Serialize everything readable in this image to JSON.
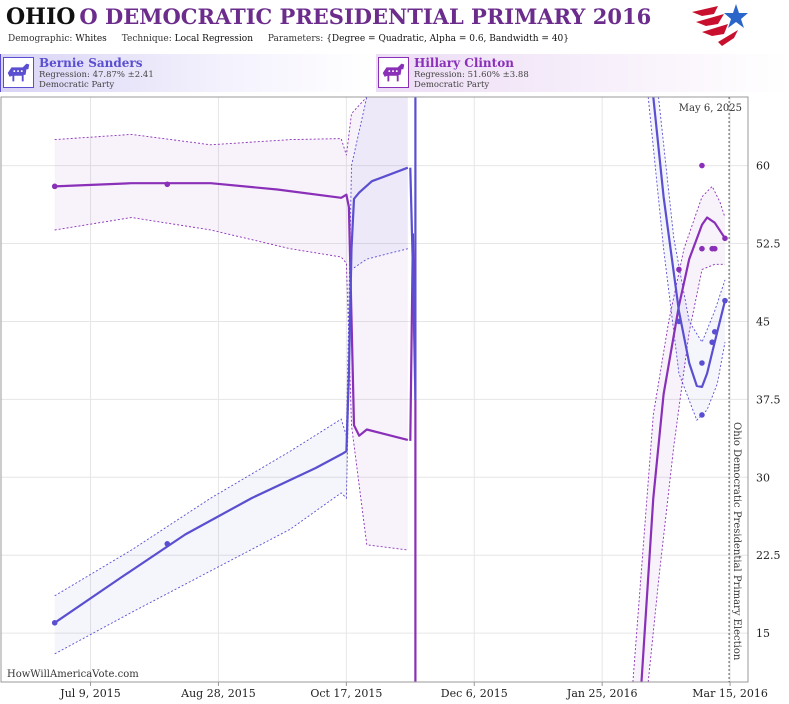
{
  "header": {
    "state": "OHIO",
    "title_rest": "O DEMOCRATIC PRESIDENTIAL PRIMARY 2016",
    "demographic_label": "Demographic:",
    "demographic_value": "Whites",
    "technique_label": "Technique:",
    "technique_value": "Local Regression",
    "parameters_label": "Parameters:",
    "parameters_value": "{Degree = Quadratic, Alpha = 0.6, Bandwidth = 40}"
  },
  "candidates": [
    {
      "name": "Bernie Sanders",
      "regression": "Regression: 47.87% ±2.41",
      "party": "Democratic Party",
      "color": "#5a4fd0"
    },
    {
      "name": "Hillary Clinton",
      "regression": "Regression: 51.60% ±3.88",
      "party": "Democratic Party",
      "color": "#8a2fb8"
    }
  ],
  "chart_data": {
    "type": "line",
    "x_tick_labels": [
      "Jul 9, 2015",
      "Aug 28, 2015",
      "Oct 17, 2015",
      "Dec 6, 2015",
      "Jan 25, 2016",
      "Mar 15, 2016"
    ],
    "x_tick_dates": [
      "2015-07-09",
      "2015-08-28",
      "2015-10-17",
      "2015-12-06",
      "2016-01-25",
      "2016-03-15"
    ],
    "xlim": [
      "2015-06-04",
      "2016-03-22"
    ],
    "y_ticks": [
      15,
      22.5,
      30,
      37.5,
      45,
      52.5,
      60
    ],
    "y_tick_labels": [
      "15",
      "22.5",
      "30",
      "37.5",
      "45",
      "52.5",
      "60"
    ],
    "ylim": [
      10.3,
      66.6
    ],
    "y_axis_side": "right",
    "grid": true,
    "current_date_label": "May 6, 2025",
    "event_label": "Ohio Democratic Presidential Primary Election",
    "event_date": "2016-03-15",
    "watermark": "HowWillAmericaVote.com",
    "series": [
      {
        "name": "Hillary Clinton",
        "color": "#8a2fb8",
        "points": [
          {
            "x": "2015-06-25",
            "y": 58.0
          },
          {
            "x": "2015-08-08",
            "y": 58.2
          },
          {
            "x": "2016-02-24",
            "y": 50.0
          },
          {
            "x": "2016-03-04",
            "y": 60.0
          },
          {
            "x": "2016-03-04",
            "y": 52.0
          },
          {
            "x": "2016-03-08",
            "y": 52.0
          },
          {
            "x": "2016-03-09",
            "y": 52.0
          },
          {
            "x": "2016-03-13",
            "y": 53.0
          }
        ],
        "segments": [
          [
            [
              "2015-06-25",
              58.0
            ],
            [
              "2015-07-25",
              58.3
            ],
            [
              "2015-08-25",
              58.3
            ],
            [
              "2015-09-20",
              57.7
            ],
            [
              "2015-10-15",
              56.9
            ],
            [
              "2015-10-17",
              57.2
            ],
            [
              "2015-10-18",
              56.0
            ],
            [
              "2015-10-20",
              35.0
            ],
            [
              "2015-10-22",
              34.0
            ],
            [
              "2015-10-25",
              34.6
            ],
            [
              "2015-11-10",
              33.6
            ]
          ],
          [
            [
              "2015-11-11",
              33.5
            ],
            [
              "2015-11-12",
              53.4
            ],
            [
              "2015-11-13",
              40.0
            ],
            [
              "2015-11-13",
              9.0
            ]
          ],
          [
            [
              "2016-02-09",
              9.0
            ],
            [
              "2016-02-14",
              28.0
            ],
            [
              "2016-02-18",
              38.0
            ],
            [
              "2016-02-24",
              46.5
            ],
            [
              "2016-02-28",
              51.0
            ],
            [
              "2016-03-04",
              54.3
            ],
            [
              "2016-03-06",
              55.0
            ],
            [
              "2016-03-09",
              54.5
            ],
            [
              "2016-03-13",
              53.0
            ]
          ]
        ],
        "band_upper": [
          [
            "2015-06-25",
            62.5
          ],
          [
            "2015-07-25",
            63.0
          ],
          [
            "2015-08-25",
            62.0
          ],
          [
            "2015-09-25",
            62.5
          ],
          [
            "2015-10-15",
            62.6
          ],
          [
            "2015-10-17",
            61.0
          ],
          [
            "2015-10-19",
            65.0
          ],
          [
            "2015-10-25",
            66.6
          ],
          [
            "2015-11-10",
            66.6
          ]
        ],
        "band_lower": [
          [
            "2015-06-25",
            53.8
          ],
          [
            "2015-07-25",
            55.0
          ],
          [
            "2015-08-25",
            53.8
          ],
          [
            "2015-09-25",
            52.0
          ],
          [
            "2015-10-15",
            51.2
          ],
          [
            "2015-10-17",
            50.6
          ],
          [
            "2015-10-19",
            35.0
          ],
          [
            "2015-10-25",
            23.5
          ],
          [
            "2015-11-10",
            23.0
          ]
        ],
        "band_upper_2": [
          [
            "2016-02-06",
            10.3
          ],
          [
            "2016-02-14",
            36.0
          ],
          [
            "2016-02-20",
            45.0
          ],
          [
            "2016-02-26",
            52.0
          ],
          [
            "2016-03-04",
            57.0
          ],
          [
            "2016-03-08",
            58.0
          ],
          [
            "2016-03-11",
            56.5
          ],
          [
            "2016-03-13",
            55.0
          ]
        ],
        "band_lower_2": [
          [
            "2016-02-12",
            10.3
          ],
          [
            "2016-02-16",
            20.0
          ],
          [
            "2016-02-22",
            33.0
          ],
          [
            "2016-02-28",
            44.0
          ],
          [
            "2016-03-04",
            50.0
          ],
          [
            "2016-03-09",
            50.5
          ],
          [
            "2016-03-13",
            50.5
          ]
        ]
      },
      {
        "name": "Bernie Sanders",
        "color": "#5a4fd0",
        "points": [
          {
            "x": "2015-06-25",
            "y": 16.0
          },
          {
            "x": "2015-08-08",
            "y": 23.6
          },
          {
            "x": "2016-02-24",
            "y": 45.0
          },
          {
            "x": "2016-03-04",
            "y": 41.0
          },
          {
            "x": "2016-03-04",
            "y": 36.0
          },
          {
            "x": "2016-03-08",
            "y": 43.0
          },
          {
            "x": "2016-03-09",
            "y": 44.0
          },
          {
            "x": "2016-03-13",
            "y": 47.0
          }
        ],
        "segments": [
          [
            [
              "2015-06-25",
              16.0
            ],
            [
              "2015-07-20",
              20.2
            ],
            [
              "2015-08-15",
              24.5
            ],
            [
              "2015-09-10",
              28.0
            ],
            [
              "2015-10-05",
              30.9
            ],
            [
              "2015-10-15",
              32.2
            ],
            [
              "2015-10-17",
              32.5
            ],
            [
              "2015-10-18",
              40.0
            ],
            [
              "2015-10-19",
              52.0
            ],
            [
              "2015-10-20",
              56.8
            ],
            [
              "2015-10-22",
              57.4
            ],
            [
              "2015-10-27",
              58.5
            ],
            [
              "2015-11-10",
              59.8
            ]
          ],
          [
            [
              "2015-11-11",
              59.8
            ],
            [
              "2015-11-12",
              50.0
            ],
            [
              "2015-11-13",
              37.5
            ],
            [
              "2015-11-13",
              66.6
            ]
          ],
          [
            [
              "2016-02-14",
              66.6
            ],
            [
              "2016-02-18",
              57.0
            ],
            [
              "2016-02-24",
              46.0
            ],
            [
              "2016-02-28",
              41.0
            ],
            [
              "2016-03-02",
              38.8
            ],
            [
              "2016-03-04",
              38.7
            ],
            [
              "2016-03-06",
              40.0
            ],
            [
              "2016-03-09",
              43.0
            ],
            [
              "2016-03-13",
              47.0
            ]
          ]
        ],
        "band_upper": [
          [
            "2015-06-25",
            18.6
          ],
          [
            "2015-07-25",
            23.0
          ],
          [
            "2015-08-25",
            28.0
          ],
          [
            "2015-09-25",
            32.5
          ],
          [
            "2015-10-15",
            35.6
          ],
          [
            "2015-10-17",
            34.0
          ],
          [
            "2015-10-19",
            60.0
          ],
          [
            "2015-10-25",
            66.6
          ],
          [
            "2015-11-10",
            66.6
          ]
        ],
        "band_lower": [
          [
            "2015-06-25",
            13.0
          ],
          [
            "2015-07-25",
            17.0
          ],
          [
            "2015-08-25",
            21.0
          ],
          [
            "2015-09-25",
            25.0
          ],
          [
            "2015-10-15",
            28.5
          ],
          [
            "2015-10-17",
            28.0
          ],
          [
            "2015-10-19",
            50.0
          ],
          [
            "2015-10-25",
            51.0
          ],
          [
            "2015-11-10",
            52.0
          ]
        ],
        "band_upper_2": [
          [
            "2016-02-16",
            66.6
          ],
          [
            "2016-02-22",
            53.0
          ],
          [
            "2016-02-28",
            45.0
          ],
          [
            "2016-03-04",
            43.0
          ],
          [
            "2016-03-09",
            46.0
          ],
          [
            "2016-03-13",
            49.0
          ]
        ],
        "band_lower_2": [
          [
            "2016-02-12",
            66.6
          ],
          [
            "2016-02-18",
            52.0
          ],
          [
            "2016-02-24",
            40.0
          ],
          [
            "2016-03-02",
            35.5
          ],
          [
            "2016-03-06",
            36.5
          ],
          [
            "2016-03-10",
            39.0
          ],
          [
            "2016-03-13",
            43.0
          ]
        ]
      }
    ]
  }
}
